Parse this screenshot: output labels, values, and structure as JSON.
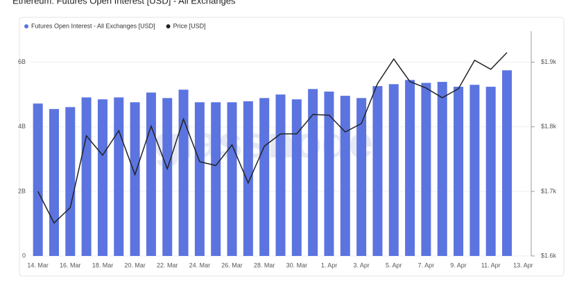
{
  "chart_data": {
    "type": "bar-line",
    "title": "Ethereum: Futures Open Interest [USD] - All Exchanges",
    "watermark": "glassnode",
    "categories": [
      "14. Mar",
      null,
      "16. Mar",
      null,
      "18. Mar",
      null,
      "20. Mar",
      null,
      "22. Mar",
      null,
      "24. Mar",
      null,
      "26. Mar",
      null,
      "28. Mar",
      null,
      "30. Mar",
      null,
      "1. Apr",
      null,
      "3. Apr",
      null,
      "5. Apr",
      null,
      "7. Apr",
      null,
      "9. Apr",
      null,
      "11. Apr",
      null,
      "13. Apr"
    ],
    "series": [
      {
        "name": "Futures Open Interest - All Exchanges [USD]",
        "color": "#5b74e0",
        "kind": "bar",
        "axis": "y",
        "values": [
          4.72,
          4.55,
          4.61,
          4.91,
          4.85,
          4.91,
          4.76,
          5.06,
          4.89,
          5.15,
          4.76,
          4.76,
          4.76,
          4.79,
          4.89,
          5.0,
          4.85,
          5.17,
          5.09,
          4.96,
          4.89,
          5.26,
          5.32,
          5.45,
          5.36,
          5.39,
          5.24,
          5.3,
          5.24,
          5.75,
          null
        ]
      },
      {
        "name": "Price [USD]",
        "color": "#222222",
        "kind": "line",
        "axis": "y2",
        "values": [
          1700,
          1651,
          1675,
          1786,
          1756,
          1794,
          1726,
          1801,
          1735,
          1812,
          1746,
          1740,
          1772,
          1713,
          1770,
          1789,
          1789,
          1819,
          1818,
          1792,
          1805,
          1867,
          1905,
          1870,
          1860,
          1845,
          1859,
          1903,
          1889,
          1915,
          null
        ]
      }
    ],
    "ylim": [
      0,
      6.96
    ],
    "yticks": [
      0,
      {
        "value": 2,
        "label": "2B"
      },
      {
        "value": 4,
        "label": "4B"
      },
      {
        "value": 6,
        "label": "6B"
      }
    ],
    "y2lim": [
      1600,
      1948
    ],
    "y2ticks": [
      {
        "value": 1600,
        "label": "$1.6k"
      },
      {
        "value": 1700,
        "label": "$1.7k"
      },
      {
        "value": 1800,
        "label": "$1.8k"
      },
      {
        "value": 1900,
        "label": "$1.9k"
      }
    ],
    "grid": true
  }
}
